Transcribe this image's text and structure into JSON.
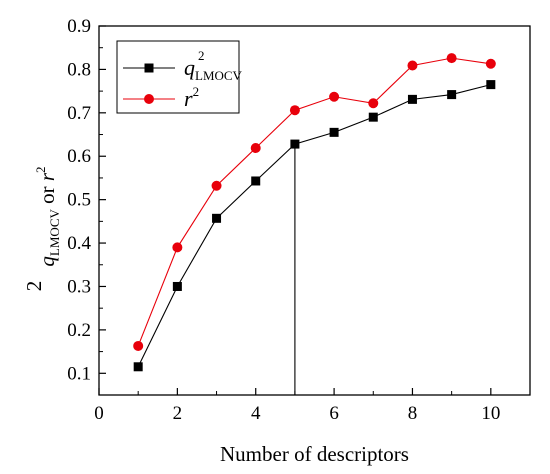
{
  "chart_data": {
    "type": "line",
    "xlabel": "Number of descriptors",
    "ylabel": {
      "main": "q",
      "sup": "2",
      "sub": "LMOCV",
      "middle": " or ",
      "second": "r",
      "second_sup": "2"
    },
    "xlim": [
      0,
      11
    ],
    "ylim": [
      0.05,
      0.9
    ],
    "xticks": [
      0,
      2,
      4,
      6,
      8,
      10
    ],
    "yticks": [
      0.1,
      0.2,
      0.3,
      0.4,
      0.5,
      0.6,
      0.7,
      0.8,
      0.9
    ],
    "x": [
      1,
      2,
      3,
      4,
      5,
      6,
      7,
      8,
      9,
      10
    ],
    "series": [
      {
        "name": {
          "main": "q",
          "sup": "2",
          "sub": "LMOCV"
        },
        "marker": "square",
        "color": "#000000",
        "values": [
          0.115,
          0.3,
          0.457,
          0.543,
          0.628,
          0.655,
          0.69,
          0.731,
          0.742,
          0.765
        ]
      },
      {
        "name": {
          "main": "r",
          "sup": "2"
        },
        "marker": "circle",
        "color": "#e8000b",
        "values": [
          0.163,
          0.39,
          0.532,
          0.619,
          0.706,
          0.737,
          0.722,
          0.809,
          0.826,
          0.813
        ]
      }
    ],
    "reference_line_x": 5,
    "legend": "top-left",
    "grid": false
  }
}
